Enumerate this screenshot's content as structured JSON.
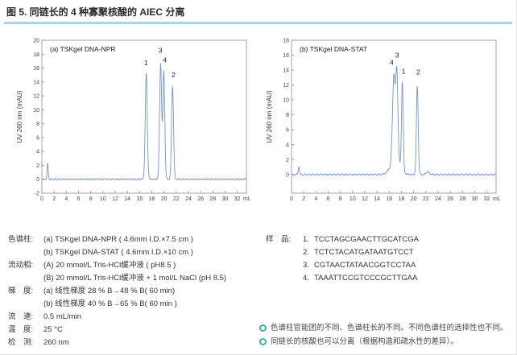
{
  "page": {
    "title": "图 5. 同链长的 4 种寡聚核酸的 AIEC 分离",
    "accent_rule_color": "#a9d6ea"
  },
  "chart_data": [
    {
      "type": "line",
      "title": "(a) TSKgel DNA-NPR",
      "xlabel": "mL",
      "ylabel": "UV 260 nm (mAU)",
      "x_unit": "mL",
      "xlim": [
        0,
        33.5
      ],
      "ylim": [
        -2,
        20
      ],
      "x_ticks": [
        0,
        2,
        4,
        6,
        8,
        10,
        12,
        14,
        16,
        18,
        20,
        22,
        24,
        26,
        28,
        30,
        32
      ],
      "y_ticks": [
        -2,
        0,
        2,
        4,
        6,
        8,
        10,
        12,
        14,
        16,
        18,
        20
      ],
      "line_color": "#7693cc",
      "grid": false,
      "peaks_comment": "each peak = [retention mL, height mAU, sigma mL]",
      "peaks": [
        [
          0.95,
          2.3,
          0.09
        ],
        [
          17.1,
          15.2,
          0.17
        ],
        [
          19.45,
          16.7,
          0.17
        ],
        [
          19.98,
          15.6,
          0.15
        ],
        [
          21.4,
          13.5,
          0.16
        ]
      ],
      "peak_labels": [
        {
          "text": "1",
          "x": 17.05,
          "y": 16.4
        },
        {
          "text": "3",
          "x": 19.4,
          "y": 18.2
        },
        {
          "text": "4",
          "x": 20.15,
          "y": 16.8
        },
        {
          "text": "2",
          "x": 21.55,
          "y": 14.7
        }
      ]
    },
    {
      "type": "line",
      "title": "(b) TSKgel DNA-STAT",
      "xlabel": "mL",
      "ylabel": "UV 260 nm (mAU)",
      "x_unit": "mL",
      "xlim": [
        0,
        33.5
      ],
      "ylim": [
        -2.5,
        18
      ],
      "x_ticks": [
        0,
        2,
        4,
        6,
        8,
        10,
        12,
        14,
        16,
        18,
        20,
        22,
        24,
        26,
        28,
        30,
        32
      ],
      "y_ticks": [
        0,
        2,
        4,
        6,
        8,
        10,
        12,
        14,
        16,
        18
      ],
      "line_color": "#7693cc",
      "grid": false,
      "peaks_comment": "each peak = [retention mL, height mAU, sigma mL]",
      "peaks": [
        [
          1.2,
          1.1,
          0.1
        ],
        [
          17.0,
          2.0,
          0.75
        ],
        [
          16.75,
          11.3,
          0.21
        ],
        [
          17.25,
          11.9,
          0.18
        ],
        [
          18.15,
          11.9,
          0.14
        ],
        [
          20.6,
          11.9,
          0.15
        ],
        [
          22.3,
          0.35,
          0.25
        ]
      ],
      "peak_labels": [
        {
          "text": "4",
          "x": 16.4,
          "y": 14.7
        },
        {
          "text": "3",
          "x": 17.3,
          "y": 15.7
        },
        {
          "text": "1",
          "x": 18.35,
          "y": 13.5
        },
        {
          "text": "2",
          "x": 20.75,
          "y": 13.4
        }
      ]
    }
  ],
  "conditions": {
    "rows": [
      {
        "label": "色谱柱:",
        "lines": [
          "(a) TSKgel DNA-NPR ( 4.6mm I.D.×7.5 cm )",
          "(b) TSKgel DNA-STAT ( 4.6mm I.D.×10 cm )"
        ]
      },
      {
        "label": "流动相:",
        "lines": [
          "(A) 20 mmol/L Tris-HCl缓冲液 ( pH8.5 )",
          "(B) 20 mmol/L Tris-HCl缓冲液 + 1 mol/L NaCl (pH 8.5)"
        ]
      },
      {
        "label": "梯　度:",
        "lines": [
          "(a) 线性梯度 28 % B→48 % B( 60 min)",
          "(b) 线性梯度 40 % B→65 % B( 60 min )"
        ]
      },
      {
        "label": "流　速:",
        "lines": [
          "0.5 mL/min"
        ]
      },
      {
        "label": "温　度:",
        "lines": [
          "25 °C"
        ]
      },
      {
        "label": "检　测:",
        "lines": [
          "260 nm"
        ]
      }
    ]
  },
  "samples": {
    "label": "样　品:",
    "items": [
      {
        "no": "1.",
        "seq": "TCCTAGCGAACTTGCATCGA"
      },
      {
        "no": "2.",
        "seq": "TCTCTACATGATAATGTCCT"
      },
      {
        "no": "3.",
        "seq": "CGTAACTATAACGGTCCTAA"
      },
      {
        "no": "4.",
        "seq": "TAAATTCCGTCCCGCTTGAA"
      }
    ]
  },
  "notes": {
    "bullet_color": "#3fae9e",
    "items": [
      "色谱柱官能团的不同、色谱柱长的不同。不同色谱柱的选择性也不同。",
      "同链长的核酸也可以分离（根据构造和疏水性的差异）。"
    ]
  }
}
